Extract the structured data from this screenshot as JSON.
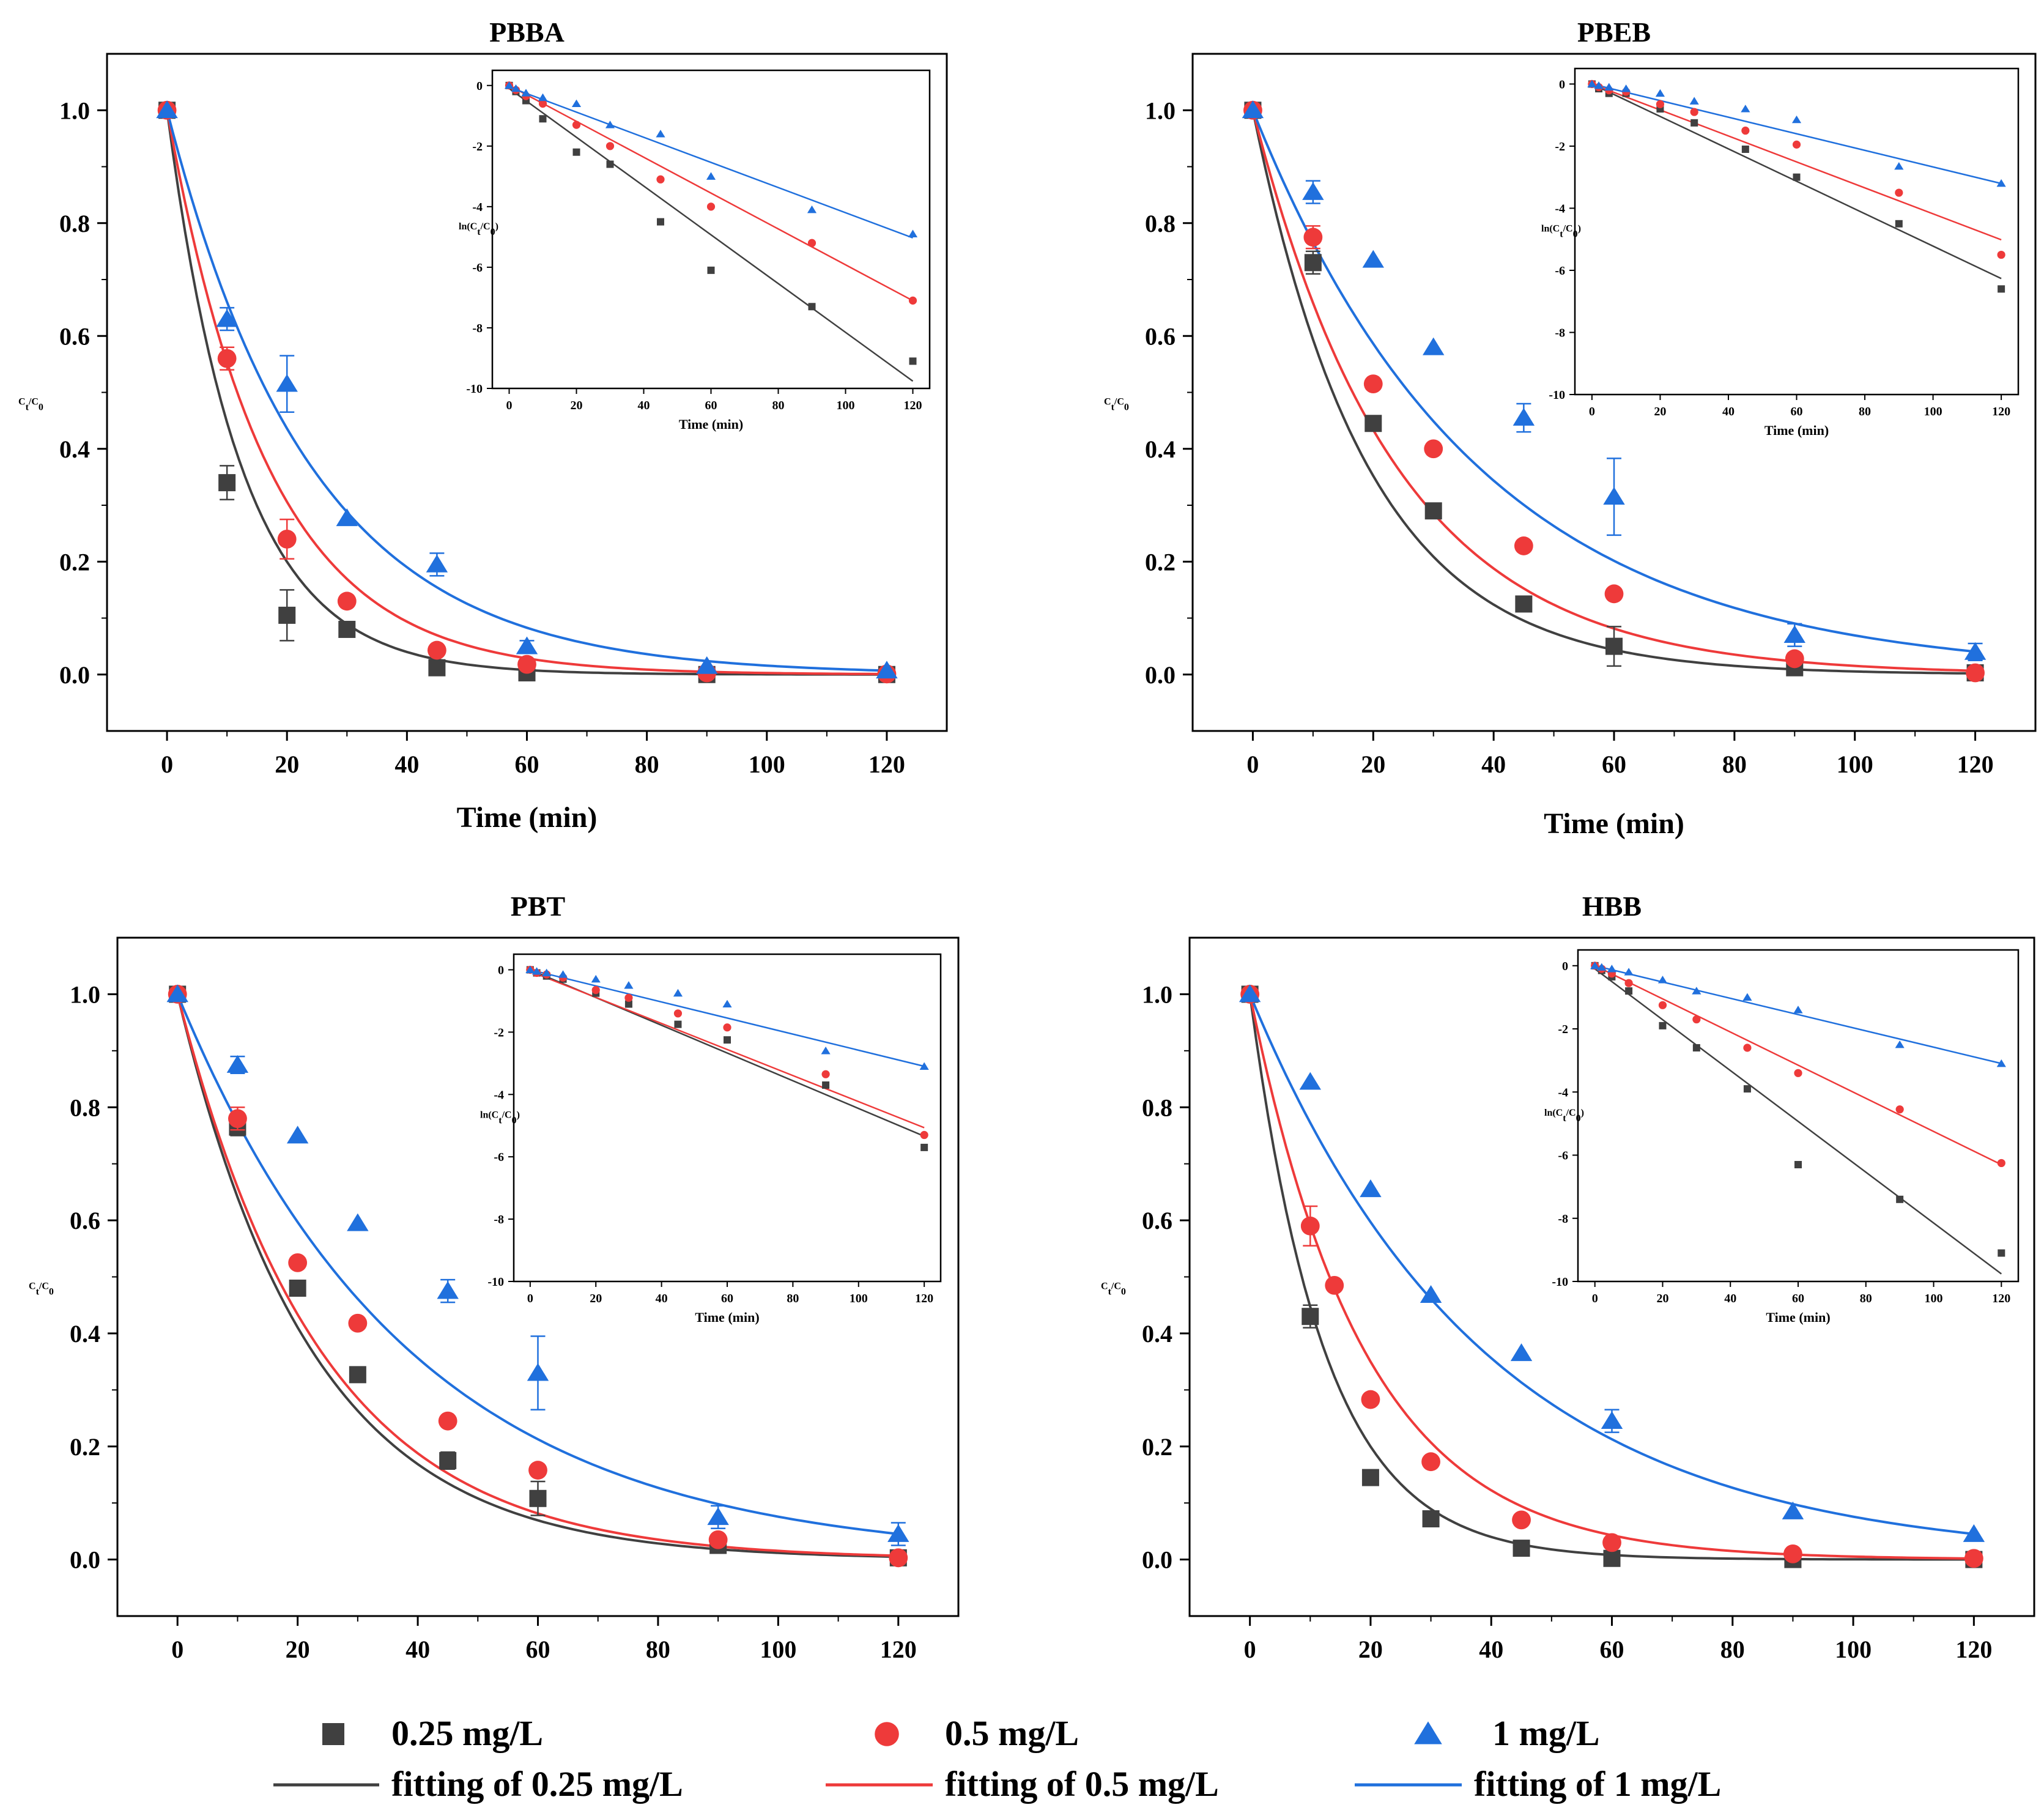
{
  "figure": {
    "series_styles": [
      {
        "key": "s025",
        "color": "#404040",
        "marker": "square"
      },
      {
        "key": "s05",
        "color": "#ee3a3a",
        "marker": "circle"
      },
      {
        "key": "s1",
        "color": "#2070dd",
        "marker": "triangle"
      }
    ],
    "legend": {
      "markers": [
        "0.25 mg/L",
        "0.5 mg/L",
        "1 mg/L"
      ],
      "lines": [
        "fitting of 0.25 mg/L",
        "fitting of 0.5 mg/L",
        "fitting of 1 mg/L"
      ]
    }
  },
  "chart_data": [
    {
      "type": "scatter",
      "title": "PBBA",
      "xlabel": "Time (min)",
      "ylabel": "Ct/C0",
      "xlim": [
        -10,
        130
      ],
      "ylim": [
        -0.1,
        1.1
      ],
      "xticks": [
        0,
        20,
        40,
        60,
        80,
        100,
        120
      ],
      "yticks": [
        0.0,
        0.2,
        0.4,
        0.6,
        0.8,
        1.0
      ],
      "x": [
        0,
        10,
        20,
        30,
        45,
        60,
        90,
        120
      ],
      "series": [
        {
          "name": "0.25 mg/L",
          "values": [
            1.0,
            0.34,
            0.105,
            0.08,
            0.012,
            0.003,
            0.0,
            0.0
          ],
          "errors": [
            0,
            0.03,
            0.045,
            0,
            0.01,
            0,
            0,
            0
          ],
          "k": 0.0805
        },
        {
          "name": "0.5 mg/L",
          "values": [
            1.0,
            0.56,
            0.24,
            0.13,
            0.043,
            0.018,
            0.003,
            0.001
          ],
          "errors": [
            0,
            0.02,
            0.035,
            0,
            0,
            0,
            0,
            0
          ],
          "k": 0.0592
        },
        {
          "name": "1 mg/L",
          "values": [
            1.0,
            0.63,
            0.515,
            0.277,
            0.195,
            0.05,
            0.015,
            0.007
          ],
          "errors": [
            0,
            0.02,
            0.05,
            0,
            0.02,
            0.01,
            0,
            0
          ],
          "k": 0.0415
        }
      ],
      "inset": {
        "xlabel": "Time (min)",
        "ylabel": "ln(Ct/C0)",
        "xlim": [
          -5,
          125
        ],
        "ylim": [
          -10,
          0.5
        ],
        "xticks": [
          0,
          20,
          40,
          60,
          80,
          100,
          120
        ],
        "yticks": [
          0,
          -2,
          -4,
          -6,
          -8,
          -10
        ],
        "x": [
          0,
          2,
          5,
          10,
          20,
          30,
          45,
          60,
          90,
          120
        ],
        "series": [
          {
            "name": "0.25 mg/L",
            "values": [
              0,
              -0.2,
              -0.5,
              -1.1,
              -2.2,
              -2.6,
              -4.5,
              -6.1,
              -7.3,
              -9.1
            ],
            "slope": -0.0805,
            "intercept": -0.1
          },
          {
            "name": "0.5 mg/L",
            "values": [
              0,
              -0.15,
              -0.35,
              -0.6,
              -1.3,
              -2.0,
              -3.1,
              -4.0,
              -5.2,
              -7.1
            ],
            "slope": -0.0592,
            "intercept": 0.0
          },
          {
            "name": "1 mg/L",
            "values": [
              0,
              -0.1,
              -0.25,
              -0.4,
              -0.6,
              -1.3,
              -1.6,
              -3.0,
              -4.1,
              -4.9
            ],
            "slope": -0.0415,
            "intercept": -0.05
          }
        ]
      }
    },
    {
      "type": "scatter",
      "title": "PBEB",
      "xlabel": "Time (min)",
      "ylabel": "Ct/C0",
      "xlim": [
        -10,
        130
      ],
      "ylim": [
        -0.1,
        1.1
      ],
      "xticks": [
        0,
        20,
        40,
        60,
        80,
        100,
        120
      ],
      "yticks": [
        0.0,
        0.2,
        0.4,
        0.6,
        0.8,
        1.0
      ],
      "x": [
        0,
        10,
        20,
        30,
        45,
        60,
        90,
        120
      ],
      "series": [
        {
          "name": "0.25 mg/L",
          "values": [
            1.0,
            0.73,
            0.445,
            0.29,
            0.125,
            0.05,
            0.012,
            0.003
          ],
          "errors": [
            0,
            0.02,
            0,
            0,
            0.01,
            0.035,
            0,
            0
          ],
          "k": 0.0522
        },
        {
          "name": "0.5 mg/L",
          "values": [
            1.0,
            0.775,
            0.515,
            0.4,
            0.228,
            0.143,
            0.028,
            0.003
          ],
          "errors": [
            0,
            0.02,
            0,
            0,
            0,
            0,
            0,
            0
          ],
          "k": 0.0418
        },
        {
          "name": "1 mg/L",
          "values": [
            1.0,
            0.855,
            0.735,
            0.58,
            0.455,
            0.315,
            0.07,
            0.04
          ],
          "errors": [
            0,
            0.02,
            0,
            0,
            0.025,
            0.068,
            0.02,
            0.015
          ],
          "k": 0.0267
        }
      ],
      "inset": {
        "xlabel": "Time (min)",
        "ylabel": "ln(Ct/C0)",
        "xlim": [
          -5,
          125
        ],
        "ylim": [
          -10,
          0.5
        ],
        "xticks": [
          0,
          20,
          40,
          60,
          80,
          100,
          120
        ],
        "yticks": [
          0,
          -2,
          -4,
          -6,
          -8,
          -10
        ],
        "x": [
          0,
          2,
          5,
          10,
          20,
          30,
          45,
          60,
          90,
          120
        ],
        "series": [
          {
            "name": "0.25 mg/L",
            "values": [
              0,
              -0.15,
              -0.3,
              -0.3,
              -0.8,
              -1.25,
              -2.1,
              -3.0,
              -4.5,
              -6.6
            ],
            "slope": -0.0522,
            "intercept": 0.0
          },
          {
            "name": "0.5 mg/L",
            "values": [
              0,
              -0.1,
              -0.2,
              -0.25,
              -0.65,
              -0.9,
              -1.5,
              -1.95,
              -3.5,
              -5.5
            ],
            "slope": -0.0418,
            "intercept": 0.0
          },
          {
            "name": "1 mg/L",
            "values": [
              0,
              -0.05,
              -0.1,
              -0.15,
              -0.3,
              -0.55,
              -0.8,
              -1.15,
              -2.65,
              -3.2
            ],
            "slope": -0.0267,
            "intercept": 0.0
          }
        ]
      }
    },
    {
      "type": "scatter",
      "title": "PBT",
      "xlabel": "",
      "ylabel": "Ct/C0",
      "xlim": [
        -10,
        130
      ],
      "ylim": [
        -0.1,
        1.1
      ],
      "xticks": [
        0,
        20,
        40,
        60,
        80,
        100,
        120
      ],
      "yticks": [
        0.0,
        0.2,
        0.4,
        0.6,
        0.8,
        1.0
      ],
      "x": [
        0,
        10,
        20,
        30,
        45,
        60,
        90,
        120
      ],
      "series": [
        {
          "name": "0.25 mg/L",
          "values": [
            1.0,
            0.765,
            0.48,
            0.327,
            0.175,
            0.108,
            0.025,
            0.003
          ],
          "errors": [
            0,
            0.015,
            0,
            0,
            0.015,
            0.03,
            0,
            0
          ],
          "k": 0.0445
        },
        {
          "name": "0.5 mg/L",
          "values": [
            1.0,
            0.78,
            0.525,
            0.418,
            0.245,
            0.158,
            0.035,
            0.003
          ],
          "errors": [
            0,
            0.02,
            0,
            0,
            0,
            0,
            0,
            0
          ],
          "k": 0.0418
        },
        {
          "name": "1 mg/L",
          "values": [
            1.0,
            0.875,
            0.75,
            0.595,
            0.475,
            0.33,
            0.075,
            0.045
          ],
          "errors": [
            0,
            0.015,
            0,
            0,
            0.02,
            0.065,
            0.02,
            0.02
          ],
          "k": 0.0258
        }
      ],
      "inset": {
        "xlabel": "Time (min)",
        "ylabel": "ln(Ct/C0)",
        "xlim": [
          -5,
          125
        ],
        "ylim": [
          -10,
          0.5
        ],
        "xticks": [
          0,
          20,
          40,
          60,
          80,
          100,
          120
        ],
        "yticks": [
          0,
          -2,
          -4,
          -6,
          -8,
          -10
        ],
        "x": [
          0,
          2,
          5,
          10,
          20,
          30,
          45,
          60,
          90,
          120
        ],
        "series": [
          {
            "name": "0.25 mg/L",
            "values": [
              0,
              -0.1,
              -0.2,
              -0.3,
              -0.75,
              -1.1,
              -1.75,
              -2.25,
              -3.7,
              -5.7
            ],
            "slope": -0.0445,
            "intercept": 0.0
          },
          {
            "name": "0.5 mg/L",
            "values": [
              0,
              -0.1,
              -0.15,
              -0.25,
              -0.65,
              -0.9,
              -1.4,
              -1.85,
              -3.35,
              -5.3
            ],
            "slope": -0.0418,
            "intercept": -0.05
          },
          {
            "name": "1 mg/L",
            "values": [
              0,
              -0.05,
              -0.1,
              -0.15,
              -0.3,
              -0.5,
              -0.75,
              -1.1,
              -2.6,
              -3.1
            ],
            "slope": -0.0258,
            "intercept": 0.0
          }
        ]
      }
    },
    {
      "type": "scatter",
      "title": "HBB",
      "xlabel": "",
      "ylabel": "Ct/C0",
      "xlim": [
        -10,
        130
      ],
      "ylim": [
        -0.1,
        1.1
      ],
      "xticks": [
        0,
        20,
        40,
        60,
        80,
        100,
        120
      ],
      "yticks": [
        0.0,
        0.2,
        0.4,
        0.6,
        0.8,
        1.0
      ],
      "x": [
        0,
        10,
        14,
        20,
        30,
        45,
        60,
        90,
        120
      ],
      "series": [
        {
          "name": "0.25 mg/L",
          "values": [
            1.0,
            0.43,
            null,
            0.145,
            0.072,
            0.02,
            0.002,
            0.0,
            0.0
          ],
          "errors": [
            0,
            0.02,
            0,
            0,
            0,
            0,
            0,
            0,
            0
          ],
          "k": 0.0805
        },
        {
          "name": "0.5 mg/L",
          "values": [
            1.0,
            0.59,
            0.485,
            0.283,
            0.173,
            0.07,
            0.03,
            0.01,
            0.002
          ],
          "errors": [
            0,
            0.035,
            0,
            0,
            0,
            0,
            0,
            0,
            0
          ],
          "k": 0.0525
        },
        {
          "name": "1 mg/L",
          "values": [
            1.0,
            0.845,
            null,
            0.655,
            0.468,
            0.365,
            0.245,
            0.085,
            0.045
          ],
          "errors": [
            0,
            0,
            0,
            0,
            0,
            0,
            0.02,
            0,
            0
          ],
          "k": 0.0258
        }
      ],
      "inset": {
        "xlabel": "Time (min)",
        "ylabel": "ln(Ct/C0)",
        "xlim": [
          -5,
          125
        ],
        "ylim": [
          -10,
          0.5
        ],
        "xticks": [
          0,
          20,
          40,
          60,
          80,
          100,
          120
        ],
        "yticks": [
          0,
          -2,
          -4,
          -6,
          -8,
          -10
        ],
        "x": [
          0,
          2,
          5,
          10,
          20,
          30,
          45,
          60,
          90,
          120
        ],
        "series": [
          {
            "name": "0.25 mg/L",
            "values": [
              0,
              -0.15,
              -0.35,
              -0.8,
              -1.9,
              -2.6,
              -3.9,
              -6.3,
              -7.4,
              -9.1
            ],
            "slope": -0.0805,
            "intercept": -0.1
          },
          {
            "name": "0.5 mg/L",
            "values": [
              0,
              -0.1,
              -0.25,
              -0.55,
              -1.25,
              -1.7,
              -2.6,
              -3.4,
              -4.55,
              -6.25
            ],
            "slope": -0.0525,
            "intercept": 0.0
          },
          {
            "name": "1 mg/L",
            "values": [
              0,
              -0.05,
              -0.1,
              -0.2,
              -0.45,
              -0.8,
              -1.0,
              -1.4,
              -2.5,
              -3.1
            ],
            "slope": -0.0258,
            "intercept": 0.0
          }
        ]
      }
    }
  ]
}
